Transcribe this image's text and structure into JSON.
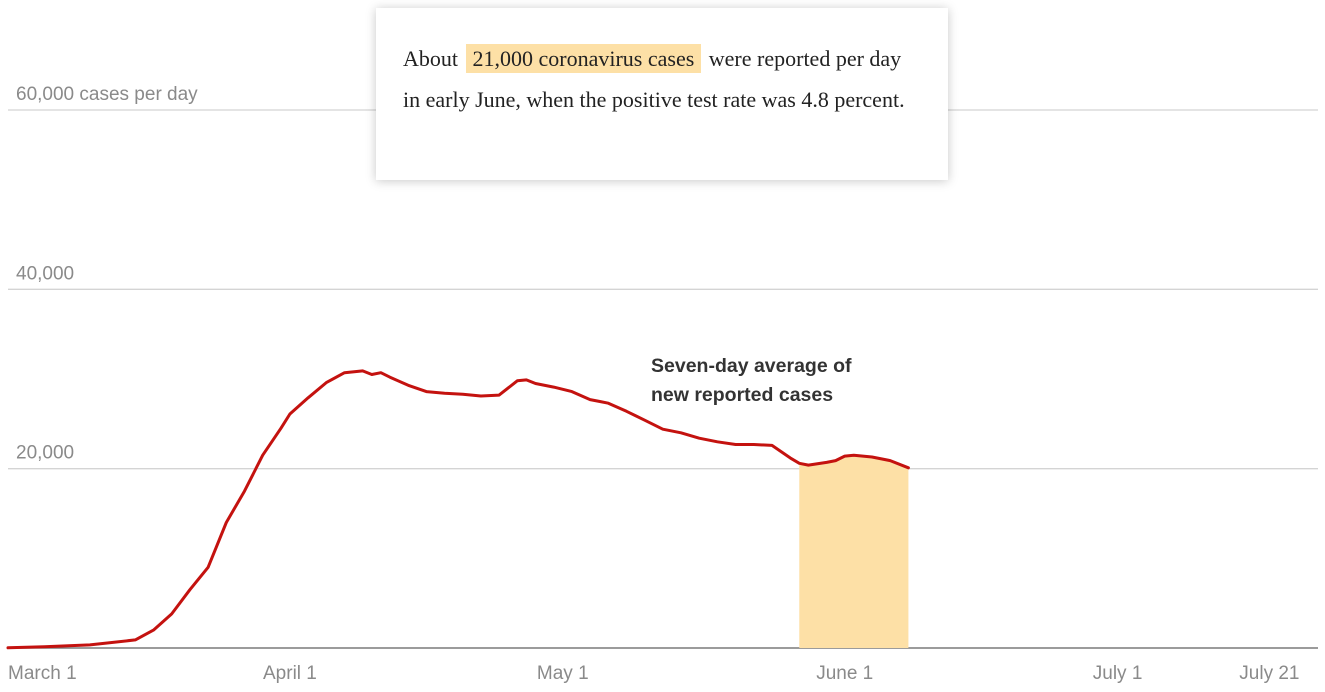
{
  "callout": {
    "prefix": "About",
    "highlight": "21,000 coronavirus cases",
    "suffix": "were reported per day in early June, when the positive test rate was 4.8 percent."
  },
  "colors": {
    "line": "#c4120f",
    "highlight": "#fde0a6",
    "grid": "#d4d4d4",
    "text": "#8a8a8a"
  },
  "chart_data": {
    "type": "line",
    "ylim": [
      0,
      60000
    ],
    "y_ticks": [
      {
        "value": 60000,
        "label": "60,000 cases per day"
      },
      {
        "value": 40000,
        "label": "40,000"
      },
      {
        "value": 20000,
        "label": "20,000"
      }
    ],
    "x_ticks": [
      {
        "day": 0,
        "label": "March 1",
        "anchor": "start"
      },
      {
        "day": 31,
        "label": "April 1",
        "anchor": "middle"
      },
      {
        "day": 61,
        "label": "May 1",
        "anchor": "middle"
      },
      {
        "day": 92,
        "label": "June 1",
        "anchor": "middle"
      },
      {
        "day": 122,
        "label": "July 1",
        "anchor": "middle"
      },
      {
        "day": 142,
        "label": "July 21",
        "anchor": "end"
      }
    ],
    "highlight_range": {
      "start": "May 27",
      "end": "June 8"
    },
    "annotation": [
      "Seven-day average of",
      "new reported cases"
    ],
    "series": [
      {
        "name": "Seven-day average of new reported cases",
        "x": [
          "Mar 1",
          "Mar 5",
          "Mar 10",
          "Mar 15",
          "Mar 17",
          "Mar 19",
          "Mar 21",
          "Mar 23",
          "Mar 25",
          "Mar 27",
          "Mar 29",
          "Mar 31",
          "Apr 1",
          "Apr 3",
          "Apr 5",
          "Apr 7",
          "Apr 9",
          "Apr 10",
          "Apr 11",
          "Apr 12",
          "Apr 14",
          "Apr 16",
          "Apr 18",
          "Apr 20",
          "Apr 22",
          "Apr 24",
          "Apr 26",
          "Apr 27",
          "Apr 28",
          "Apr 30",
          "May 2",
          "May 4",
          "May 5",
          "May 6",
          "May 8",
          "May 10",
          "May 12",
          "May 14",
          "May 16",
          "May 18",
          "May 20",
          "May 22",
          "May 24",
          "May 26",
          "May 27",
          "May 28",
          "May 30",
          "May 31",
          "Jun 1",
          "Jun 2",
          "Jun 4",
          "Jun 6",
          "Jun 8"
        ],
        "y": [
          20,
          150,
          350,
          900,
          2000,
          3800,
          6500,
          9000,
          14000,
          17500,
          21500,
          24500,
          26100,
          27900,
          29600,
          30700,
          30900,
          30500,
          30700,
          30200,
          29300,
          28600,
          28400,
          28300,
          28100,
          28200,
          29800,
          29900,
          29500,
          29100,
          28600,
          27700,
          27500,
          27300,
          26400,
          25400,
          24400,
          24000,
          23400,
          23000,
          22700,
          22700,
          22600,
          21200,
          20600,
          20400,
          20700,
          20900,
          21400,
          21500,
          21300,
          20900,
          20100
        ]
      }
    ]
  }
}
